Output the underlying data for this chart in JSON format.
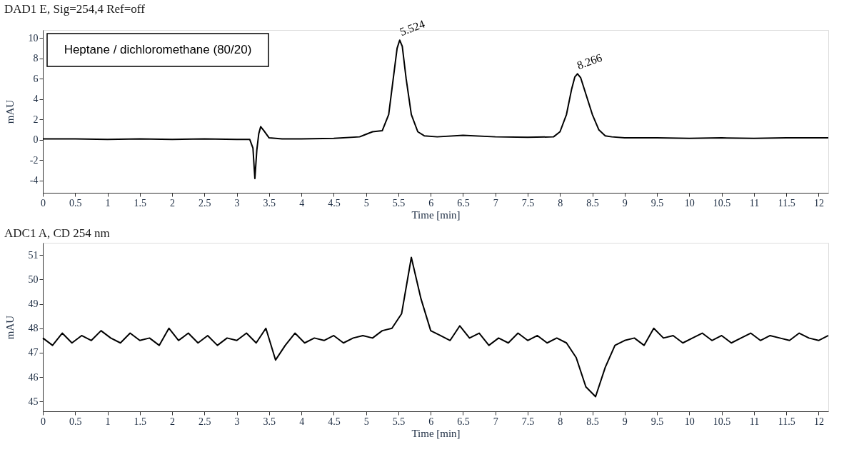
{
  "chart_data": [
    {
      "type": "line",
      "title": "DAD1 E, Sig=254,4 Ref=off",
      "xlabel": "Time [min]",
      "ylabel": "mAU",
      "xlim": [
        0,
        12.15
      ],
      "ylim": [
        -5.2,
        10.8
      ],
      "xticks": [
        0,
        0.5,
        1,
        1.5,
        2,
        2.5,
        3,
        3.5,
        4,
        4.5,
        5,
        5.5,
        6,
        6.5,
        7,
        7.5,
        8,
        8.5,
        9,
        9.5,
        10,
        10.5,
        11,
        11.5,
        12
      ],
      "yticks": [
        -4,
        -2,
        0,
        2,
        4,
        6,
        8,
        10
      ],
      "grid": false,
      "marker": "none",
      "line_style": "solid",
      "x": [
        0,
        0.5,
        1,
        1.5,
        2,
        2.5,
        3,
        3.2,
        3.25,
        3.28,
        3.31,
        3.34,
        3.37,
        3.42,
        3.5,
        3.7,
        4,
        4.5,
        4.9,
        5.1,
        5.25,
        5.35,
        5.42,
        5.48,
        5.52,
        5.56,
        5.62,
        5.7,
        5.8,
        5.9,
        6.1,
        6.5,
        7,
        7.5,
        7.9,
        8.0,
        8.1,
        8.18,
        8.23,
        8.27,
        8.32,
        8.4,
        8.5,
        8.6,
        8.7,
        8.8,
        9,
        9.5,
        10,
        10.5,
        11,
        11.5,
        12.15
      ],
      "series": [
        {
          "color": "#000000",
          "values": [
            0.1,
            0.1,
            0.05,
            0.1,
            0.05,
            0.1,
            0.05,
            0.05,
            -0.8,
            -3.8,
            -1.0,
            0.6,
            1.3,
            0.9,
            0.2,
            0.1,
            0.1,
            0.15,
            0.3,
            0.8,
            0.9,
            2.5,
            6.0,
            9.0,
            9.8,
            9.2,
            6.0,
            2.5,
            0.8,
            0.4,
            0.3,
            0.45,
            0.3,
            0.25,
            0.3,
            0.8,
            2.5,
            5.0,
            6.2,
            6.5,
            6.1,
            4.5,
            2.5,
            1.0,
            0.4,
            0.3,
            0.2,
            0.2,
            0.15,
            0.2,
            0.15,
            0.2,
            0.2
          ]
        }
      ],
      "annotations": [
        "Heptane / dichloromethane (80/20)",
        {
          "text": "5.524",
          "x": 5.524,
          "y": 9.8
        },
        {
          "text": "8.266",
          "x": 8.266,
          "y": 6.5
        }
      ]
    },
    {
      "type": "line",
      "title": "ADC1 A, CD 254 nm",
      "xlabel": "Time [min]",
      "ylabel": "mAU",
      "xlim": [
        0,
        12.15
      ],
      "ylim": [
        44.6,
        51.5
      ],
      "xticks": [
        0,
        0.5,
        1,
        1.5,
        2,
        2.5,
        3,
        3.5,
        4,
        4.5,
        5,
        5.5,
        6,
        6.5,
        7,
        7.5,
        8,
        8.5,
        9,
        9.5,
        10,
        10.5,
        11,
        11.5,
        12
      ],
      "yticks": [
        45,
        46,
        47,
        48,
        49,
        50,
        51
      ],
      "grid": false,
      "marker": "none",
      "line_style": "solid",
      "x": [
        0,
        0.15,
        0.3,
        0.45,
        0.6,
        0.75,
        0.9,
        1.05,
        1.2,
        1.35,
        1.5,
        1.65,
        1.8,
        1.95,
        2.1,
        2.25,
        2.4,
        2.55,
        2.7,
        2.85,
        3.0,
        3.15,
        3.3,
        3.45,
        3.6,
        3.75,
        3.9,
        4.05,
        4.2,
        4.35,
        4.5,
        4.65,
        4.8,
        4.95,
        5.1,
        5.25,
        5.4,
        5.55,
        5.7,
        5.85,
        6.0,
        6.15,
        6.3,
        6.45,
        6.6,
        6.75,
        6.9,
        7.05,
        7.2,
        7.35,
        7.5,
        7.65,
        7.8,
        7.95,
        8.1,
        8.25,
        8.4,
        8.55,
        8.7,
        8.85,
        9.0,
        9.15,
        9.3,
        9.45,
        9.6,
        9.75,
        9.9,
        10.05,
        10.2,
        10.35,
        10.5,
        10.65,
        10.8,
        10.95,
        11.1,
        11.25,
        11.4,
        11.55,
        11.7,
        11.85,
        12.0,
        12.15
      ],
      "series": [
        {
          "color": "#000000",
          "values": [
            47.6,
            47.3,
            47.8,
            47.4,
            47.7,
            47.5,
            47.9,
            47.6,
            47.4,
            47.8,
            47.5,
            47.6,
            47.3,
            48.0,
            47.5,
            47.8,
            47.4,
            47.7,
            47.3,
            47.6,
            47.5,
            47.8,
            47.4,
            48.0,
            46.7,
            47.3,
            47.8,
            47.4,
            47.6,
            47.5,
            47.7,
            47.4,
            47.6,
            47.7,
            47.6,
            47.9,
            48.0,
            48.6,
            50.9,
            49.2,
            47.9,
            47.7,
            47.5,
            48.1,
            47.6,
            47.8,
            47.3,
            47.6,
            47.4,
            47.8,
            47.5,
            47.7,
            47.4,
            47.6,
            47.4,
            46.8,
            45.6,
            45.2,
            46.4,
            47.3,
            47.5,
            47.6,
            47.3,
            48.0,
            47.6,
            47.7,
            47.4,
            47.6,
            47.8,
            47.5,
            47.7,
            47.4,
            47.6,
            47.8,
            47.5,
            47.7,
            47.6,
            47.5,
            47.8,
            47.6,
            47.5,
            47.7
          ]
        }
      ]
    }
  ]
}
